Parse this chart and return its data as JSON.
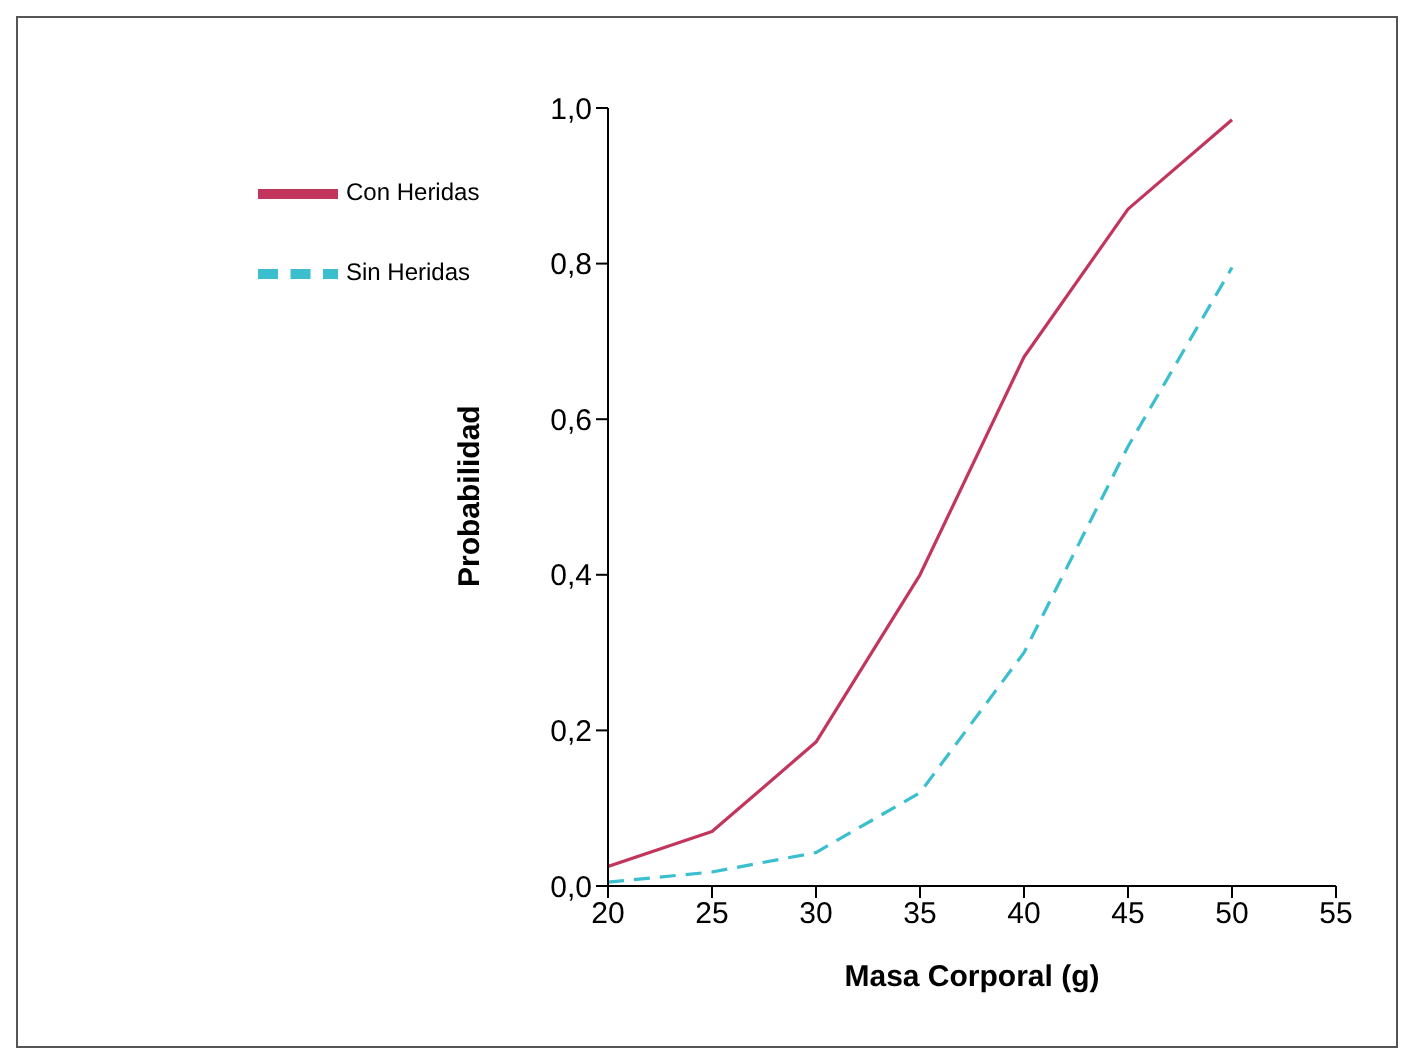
{
  "chart_data": {
    "type": "line",
    "xlabel": "Masa Corporal (g)",
    "ylabel": "Probabilidad",
    "x": [
      20,
      25,
      30,
      35,
      40,
      45,
      50
    ],
    "series": [
      {
        "name": "Con Heridas",
        "color": "#c2365e",
        "line_style": "solid",
        "values": [
          0.025,
          0.07,
          0.185,
          0.4,
          0.68,
          0.87,
          0.985
        ]
      },
      {
        "name": "Sin Heridas",
        "color": "#3bbfcf",
        "line_style": "dashed",
        "values": [
          0.005,
          0.018,
          0.043,
          0.12,
          0.3,
          0.565,
          0.795
        ]
      }
    ],
    "xlim": [
      20,
      55
    ],
    "xticks": [
      20,
      25,
      30,
      35,
      40,
      45,
      50,
      55
    ],
    "ylim": [
      0,
      1
    ],
    "yticks": [
      {
        "value": 0,
        "label": "0,0"
      },
      {
        "value": 0.2,
        "label": "0,2"
      },
      {
        "value": 0.4,
        "label": "0,4"
      },
      {
        "value": 0.6,
        "label": "0,6"
      },
      {
        "value": 0.8,
        "label": "0,8"
      },
      {
        "value": 1,
        "label": "1,0"
      }
    ],
    "grid": false,
    "legend": "top left",
    "marker": "none"
  }
}
